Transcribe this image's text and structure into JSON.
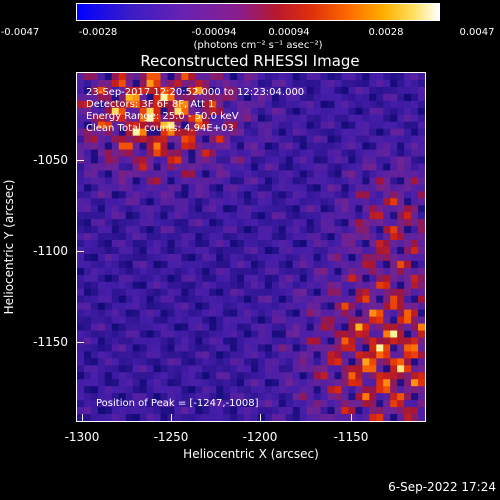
{
  "colorbar": {
    "ticks": [
      "-0.0047",
      "-0.0028",
      "-0.00094",
      "0.00094",
      "0.0028",
      "0.0047"
    ],
    "units": "(photons cm⁻² s⁻¹ asec⁻²)"
  },
  "title": "Reconstructed RHESSI Image",
  "info": {
    "line1": "23-Sep-2017 12:20:52.000 to 12:23:04.000",
    "line2": "Detectors: 3F 6F 8F, Att 1",
    "line3": "Energy Range: 25.0 - 50.0 keV",
    "line4": "Clean    Total counts: 4.94E+03",
    "peak": "Position of Peak = [-1247,-1008]"
  },
  "axes": {
    "xlabel": "Heliocentric X (arcsec)",
    "ylabel": "Heliocentric Y (arcsec)",
    "xticks": [
      "-1300",
      "-1250",
      "-1200",
      "-1150"
    ],
    "yticks": [
      "-1050",
      "-1100",
      "-1150"
    ]
  },
  "footer": "6-Sep-2022 17:24"
}
